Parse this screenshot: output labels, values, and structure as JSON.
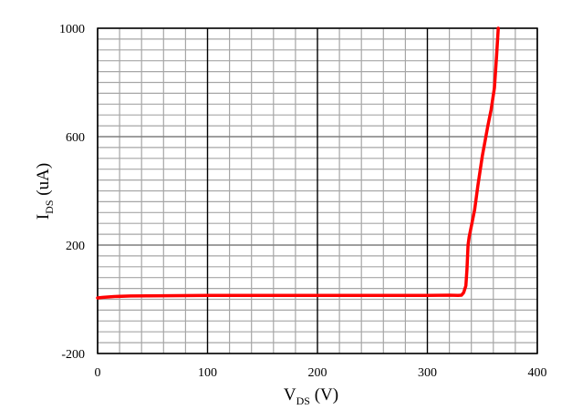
{
  "chart_data": {
    "type": "line",
    "title": "",
    "xlabel": {
      "main": "V",
      "sub": "DS",
      "unit": " (V)"
    },
    "ylabel": {
      "main": "I",
      "sub": "DS",
      "unit": " (uA)"
    },
    "xlim": [
      0,
      400
    ],
    "ylim": [
      -200,
      1000
    ],
    "x_major_ticks": [
      0,
      100,
      200,
      300,
      400
    ],
    "y_major_ticks": [
      -200,
      200,
      600,
      1000
    ],
    "x_tick_labels": [
      "0",
      "100",
      "200",
      "300",
      "400"
    ],
    "y_tick_labels": [
      "-200",
      "200",
      "600",
      "1000"
    ],
    "x_minor_step": 20,
    "y_minor_step": 40,
    "grid": true,
    "legend": "none",
    "series": [
      {
        "color": "#ff0000",
        "x": [
          0,
          5,
          15,
          30,
          60,
          100,
          150,
          200,
          250,
          300,
          320,
          328,
          331,
          333,
          335,
          336,
          337,
          338,
          340,
          343,
          346,
          350,
          355,
          358,
          361,
          363,
          364.5
        ],
        "y": [
          5,
          7,
          10,
          12,
          13,
          14,
          14,
          14,
          14,
          14,
          15,
          14,
          15,
          25,
          50,
          110,
          200,
          230,
          270,
          330,
          420,
          530,
          640,
          700,
          780,
          900,
          1000
        ]
      }
    ]
  }
}
